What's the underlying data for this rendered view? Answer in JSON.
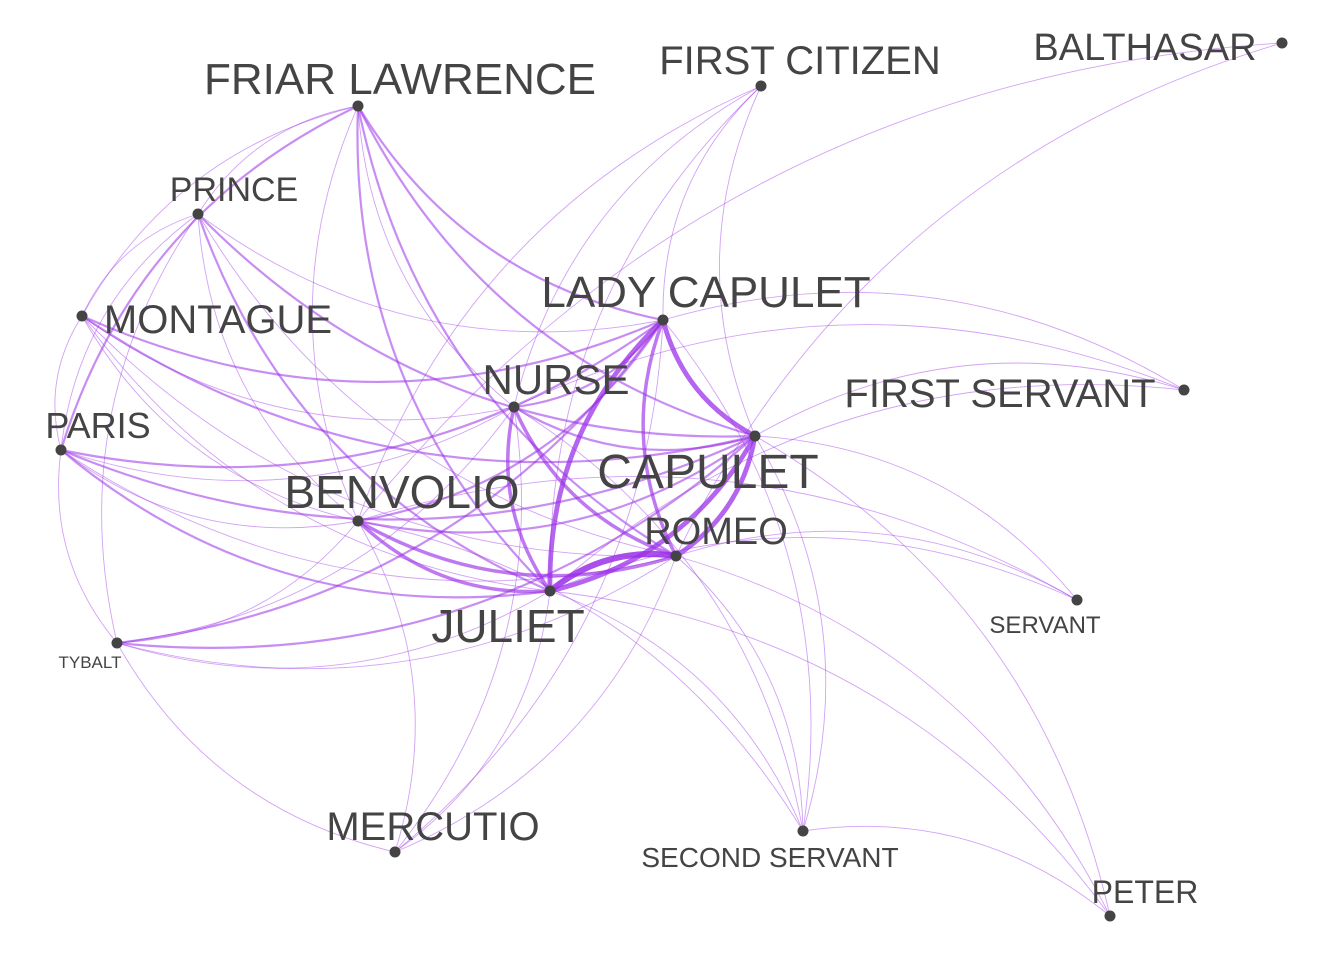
{
  "graph": {
    "edge_color": "#9b30e8",
    "node_color": "#444444",
    "label_color": "#444444",
    "nodes": [
      {
        "id": "friar_lawrence",
        "label": "FRIAR LAWRENCE"
      },
      {
        "id": "first_citizen",
        "label": "FIRST CITIZEN"
      },
      {
        "id": "balthasar",
        "label": "BALTHASAR"
      },
      {
        "id": "prince",
        "label": "PRINCE"
      },
      {
        "id": "lady_capulet",
        "label": "LADY CAPULET"
      },
      {
        "id": "montague",
        "label": "MONTAGUE"
      },
      {
        "id": "nurse",
        "label": "NURSE"
      },
      {
        "id": "first_servant",
        "label": "FIRST SERVANT"
      },
      {
        "id": "paris",
        "label": "PARIS"
      },
      {
        "id": "capulet",
        "label": "CAPULET"
      },
      {
        "id": "benvolio",
        "label": "BENVOLIO"
      },
      {
        "id": "romeo",
        "label": "ROMEO"
      },
      {
        "id": "juliet",
        "label": "JULIET"
      },
      {
        "id": "servant",
        "label": "SERVANT"
      },
      {
        "id": "tybalt",
        "label": "TYBALT"
      },
      {
        "id": "mercutio",
        "label": "MERCUTIO"
      },
      {
        "id": "second_servant",
        "label": "SECOND SERVANT"
      },
      {
        "id": "peter",
        "label": "PETER"
      }
    ],
    "edges": [
      [
        "romeo",
        "juliet",
        5
      ],
      [
        "romeo",
        "capulet",
        4
      ],
      [
        "juliet",
        "capulet",
        4
      ],
      [
        "lady_capulet",
        "capulet",
        4
      ],
      [
        "lady_capulet",
        "juliet",
        4
      ],
      [
        "lady_capulet",
        "romeo",
        3
      ],
      [
        "nurse",
        "juliet",
        3
      ],
      [
        "nurse",
        "romeo",
        3
      ],
      [
        "benvolio",
        "juliet",
        3
      ],
      [
        "benvolio",
        "romeo",
        3
      ],
      [
        "benvolio",
        "capulet",
        2
      ],
      [
        "nurse",
        "capulet",
        2
      ],
      [
        "nurse",
        "lady_capulet",
        2
      ],
      [
        "benvolio",
        "lady_capulet",
        2
      ],
      [
        "friar_lawrence",
        "juliet",
        2
      ],
      [
        "friar_lawrence",
        "romeo",
        2
      ],
      [
        "friar_lawrence",
        "capulet",
        2
      ],
      [
        "friar_lawrence",
        "lady_capulet",
        2
      ],
      [
        "friar_lawrence",
        "nurse",
        1
      ],
      [
        "friar_lawrence",
        "benvolio",
        1
      ],
      [
        "friar_lawrence",
        "paris",
        2
      ],
      [
        "friar_lawrence",
        "prince",
        1
      ],
      [
        "friar_lawrence",
        "montague",
        1
      ],
      [
        "prince",
        "capulet",
        2
      ],
      [
        "prince",
        "juliet",
        2
      ],
      [
        "prince",
        "romeo",
        1
      ],
      [
        "prince",
        "lady_capulet",
        1
      ],
      [
        "prince",
        "benvolio",
        1
      ],
      [
        "prince",
        "montague",
        1
      ],
      [
        "prince",
        "paris",
        1
      ],
      [
        "prince",
        "tybalt",
        1
      ],
      [
        "montague",
        "capulet",
        2
      ],
      [
        "montague",
        "lady_capulet",
        2
      ],
      [
        "montague",
        "juliet",
        1
      ],
      [
        "montague",
        "romeo",
        1
      ],
      [
        "montague",
        "benvolio",
        1
      ],
      [
        "montague",
        "nurse",
        1
      ],
      [
        "montague",
        "paris",
        1
      ],
      [
        "paris",
        "capulet",
        2
      ],
      [
        "paris",
        "juliet",
        2
      ],
      [
        "paris",
        "lady_capulet",
        2
      ],
      [
        "paris",
        "nurse",
        1
      ],
      [
        "paris",
        "romeo",
        1
      ],
      [
        "paris",
        "benvolio",
        1
      ],
      [
        "paris",
        "tybalt",
        1
      ],
      [
        "tybalt",
        "lady_capulet",
        2
      ],
      [
        "tybalt",
        "capulet",
        2
      ],
      [
        "tybalt",
        "romeo",
        1
      ],
      [
        "tybalt",
        "juliet",
        1
      ],
      [
        "tybalt",
        "benvolio",
        1
      ],
      [
        "tybalt",
        "nurse",
        1
      ],
      [
        "tybalt",
        "mercutio",
        1
      ],
      [
        "mercutio",
        "romeo",
        1
      ],
      [
        "mercutio",
        "benvolio",
        1
      ],
      [
        "mercutio",
        "juliet",
        1
      ],
      [
        "mercutio",
        "nurse",
        1
      ],
      [
        "mercutio",
        "lady_capulet",
        1
      ],
      [
        "first_citizen",
        "capulet",
        1
      ],
      [
        "first_citizen",
        "lady_capulet",
        1
      ],
      [
        "first_citizen",
        "nurse",
        1
      ],
      [
        "first_citizen",
        "juliet",
        1
      ],
      [
        "first_citizen",
        "benvolio",
        1
      ],
      [
        "balthasar",
        "romeo",
        1
      ],
      [
        "balthasar",
        "benvolio",
        1
      ],
      [
        "first_servant",
        "capulet",
        1
      ],
      [
        "first_servant",
        "lady_capulet",
        1
      ],
      [
        "first_servant",
        "juliet",
        1
      ],
      [
        "first_servant",
        "nurse",
        1
      ],
      [
        "servant",
        "capulet",
        1
      ],
      [
        "servant",
        "romeo",
        1
      ],
      [
        "servant",
        "juliet",
        1
      ],
      [
        "servant",
        "benvolio",
        1
      ],
      [
        "second_servant",
        "capulet",
        1
      ],
      [
        "second_servant",
        "romeo",
        1
      ],
      [
        "second_servant",
        "juliet",
        1
      ],
      [
        "second_servant",
        "nurse",
        1
      ],
      [
        "second_servant",
        "lady_capulet",
        1
      ],
      [
        "second_servant",
        "benvolio",
        1
      ],
      [
        "peter",
        "romeo",
        1
      ],
      [
        "peter",
        "juliet",
        1
      ],
      [
        "peter",
        "capulet",
        1
      ],
      [
        "peter",
        "second_servant",
        1
      ]
    ]
  }
}
